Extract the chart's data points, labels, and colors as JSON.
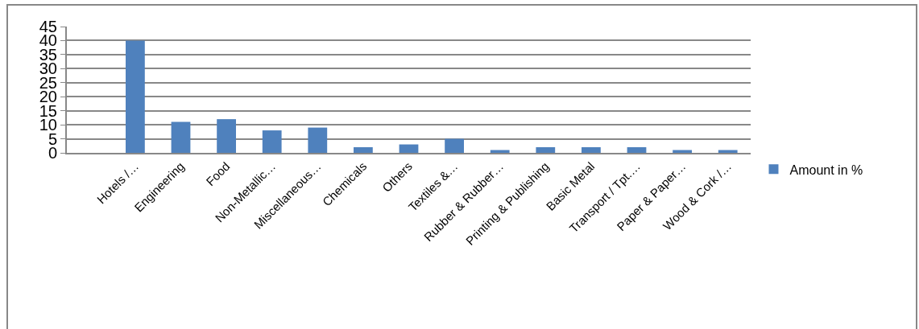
{
  "chart_data": {
    "type": "bar",
    "categories": [
      null,
      "Hotels /…",
      "Engineering",
      "Food",
      "Non-Metallic…",
      "Miscellaneous…",
      "Chemicals",
      "Others",
      "Textiles &…",
      "Rubber & Rubber…",
      "Printing & Publishing",
      "Basic Metal",
      "Transport / Tpt.…",
      "Paper & Paper…",
      "Wood & Cork /…"
    ],
    "series": [
      {
        "name": "Amount in %",
        "color": "#4f81bd",
        "values": [
          null,
          40,
          11,
          12,
          8,
          9,
          2,
          3,
          5,
          1,
          2,
          2,
          2,
          1,
          1
        ]
      }
    ],
    "ylim": [
      0,
      45
    ],
    "yticks": [
      0,
      5,
      10,
      15,
      20,
      25,
      30,
      35,
      40,
      45
    ],
    "grid": "y",
    "legend": "right"
  }
}
